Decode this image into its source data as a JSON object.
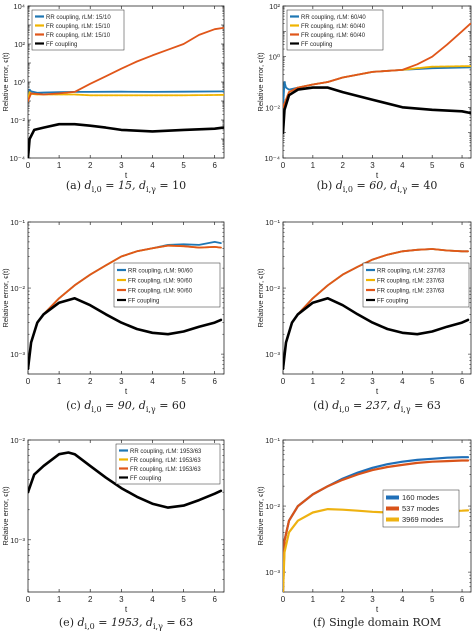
{
  "colors": {
    "RR": "#1f77b4",
    "FR": "#f0b400",
    "FR2": "#e0561a",
    "FF": "#000000",
    "M160": "#1f6fb8",
    "M537": "#d95319",
    "M3969": "#eeb211"
  },
  "chart_data": [
    {
      "type": "line",
      "caption_label": "(a)",
      "caption_rest": "d_{i,0} = 15, d_{i,γ} = 10",
      "xlabel": "t",
      "ylabel": "Relative error, ϵ(t)",
      "yscale": "log",
      "xlim": [
        0,
        6.3
      ],
      "ylim": [
        0.0001,
        10000
      ],
      "xticks": [
        "0",
        "1",
        "2",
        "3",
        "4",
        "5",
        "6"
      ],
      "yticks": [
        {
          "v": 10000,
          "t": "10⁴"
        },
        {
          "v": 100,
          "t": "10²"
        },
        {
          "v": 1,
          "t": "10⁰"
        },
        {
          "v": 0.01,
          "t": "10⁻²"
        },
        {
          "v": 0.0001,
          "t": "10⁻⁴"
        }
      ],
      "legend_position": "top-left",
      "series": [
        {
          "name": "RR coupling, rLM: 15/10",
          "key": "RR",
          "x": [
            0,
            0.05,
            0.1,
            0.3,
            0.5,
            1,
            1.5,
            2,
            3,
            4,
            5,
            6.28
          ],
          "y": [
            0.1,
            0.4,
            0.32,
            0.27,
            0.28,
            0.29,
            0.3,
            0.3,
            0.31,
            0.3,
            0.31,
            0.32
          ]
        },
        {
          "name": "FR coupling, rLM: 15/10",
          "key": "FR",
          "x": [
            0,
            0.05,
            0.1,
            0.3,
            0.5,
            1,
            1.5,
            2,
            3,
            4,
            5,
            6.28
          ],
          "y": [
            0.1,
            0.3,
            0.24,
            0.22,
            0.22,
            0.22,
            0.22,
            0.2,
            0.2,
            0.2,
            0.2,
            0.21
          ]
        },
        {
          "name": "FR coupling, rLM: 15/10",
          "key": "FR2",
          "x": [
            0,
            0.1,
            0.5,
            1,
            1.5,
            2,
            2.5,
            3,
            3.5,
            4,
            4.5,
            5,
            5.5,
            6,
            6.28
          ],
          "y": [
            0.1,
            0.25,
            0.22,
            0.25,
            0.3,
            0.8,
            2,
            5,
            12,
            25,
            50,
            100,
            300,
            600,
            700
          ]
        },
        {
          "name": "FF coupling",
          "key": "FF",
          "x": [
            0,
            0.05,
            0.2,
            0.5,
            1,
            1.5,
            2,
            2.5,
            3,
            4,
            5,
            6,
            6.28
          ],
          "y": [
            0.0001,
            0.001,
            0.003,
            0.004,
            0.006,
            0.006,
            0.005,
            0.004,
            0.003,
            0.0025,
            0.003,
            0.0035,
            0.004
          ]
        }
      ]
    },
    {
      "type": "line",
      "caption_label": "(b)",
      "caption_rest": "d_{i,0} = 60, d_{i,γ} = 40",
      "xlabel": "t",
      "ylabel": "Relative error, ϵ(t)",
      "yscale": "log",
      "xlim": [
        0,
        6.3
      ],
      "ylim": [
        0.0001,
        100
      ],
      "xticks": [
        "0",
        "1",
        "2",
        "3",
        "4",
        "5",
        "6"
      ],
      "yticks": [
        {
          "v": 100,
          "t": "10²"
        },
        {
          "v": 1,
          "t": "10⁰"
        },
        {
          "v": 0.01,
          "t": "10⁻²"
        },
        {
          "v": 0.0001,
          "t": "10⁻⁴"
        }
      ],
      "legend_position": "top-left",
      "series": [
        {
          "name": "RR coupling, rLM: 60/40",
          "key": "RR",
          "x": [
            0,
            0.05,
            0.1,
            0.2,
            0.5,
            1,
            1.5,
            2,
            3,
            4,
            5,
            6.28
          ],
          "y": [
            0.01,
            0.1,
            0.06,
            0.05,
            0.06,
            0.08,
            0.1,
            0.15,
            0.25,
            0.3,
            0.35,
            0.38
          ]
        },
        {
          "name": "FR coupling, rLM: 60/40",
          "key": "FR",
          "x": [
            0,
            0.2,
            0.5,
            1,
            1.5,
            2,
            3,
            4,
            4.5,
            5,
            6,
            6.28
          ],
          "y": [
            0.01,
            0.04,
            0.06,
            0.08,
            0.1,
            0.15,
            0.25,
            0.3,
            0.35,
            0.4,
            0.42,
            0.42
          ]
        },
        {
          "name": "FR coupling, rLM: 60/40",
          "key": "FR2",
          "x": [
            0,
            0.2,
            0.5,
            1,
            1.5,
            2,
            3,
            4,
            4.5,
            5,
            5.5,
            6,
            6.28
          ],
          "y": [
            0.01,
            0.04,
            0.06,
            0.08,
            0.1,
            0.15,
            0.25,
            0.3,
            0.5,
            1,
            3,
            10,
            20
          ]
        },
        {
          "name": "FF coupling",
          "key": "FF",
          "x": [
            0,
            0.05,
            0.2,
            0.5,
            1,
            1.5,
            2,
            3,
            4,
            5,
            6,
            6.28
          ],
          "y": [
            0.001,
            0.008,
            0.03,
            0.05,
            0.06,
            0.06,
            0.04,
            0.02,
            0.01,
            0.008,
            0.007,
            0.006
          ]
        }
      ]
    },
    {
      "type": "line",
      "caption_label": "(c)",
      "caption_rest": "d_{i,0} = 90, d_{i,γ} = 60",
      "xlabel": "t",
      "ylabel": "Relative error, ϵ(t)",
      "yscale": "log",
      "xlim": [
        0,
        6.3
      ],
      "ylim": [
        0.0005,
        0.1
      ],
      "xticks": [
        "0",
        "1",
        "2",
        "3",
        "4",
        "5",
        "6"
      ],
      "yticks": [
        {
          "v": 0.1,
          "t": "10⁻¹"
        },
        {
          "v": 0.01,
          "t": "10⁻²"
        },
        {
          "v": 0.001,
          "t": "10⁻³"
        }
      ],
      "legend_position": "center-right",
      "series": [
        {
          "name": "RR coupling, rLM: 90/60",
          "key": "RR",
          "x": [
            0,
            0.1,
            0.3,
            0.5,
            1,
            1.5,
            2,
            2.5,
            3,
            3.5,
            4,
            4.5,
            5,
            5.5,
            6,
            6.2
          ],
          "y": [
            0.0006,
            0.0015,
            0.003,
            0.004,
            0.007,
            0.011,
            0.016,
            0.022,
            0.03,
            0.036,
            0.04,
            0.045,
            0.046,
            0.045,
            0.05,
            0.048
          ]
        },
        {
          "name": "FR coupling, rLM: 90/60",
          "key": "FR",
          "x": [
            0,
            0.1,
            0.3,
            0.5,
            1,
            1.5,
            2,
            2.5,
            3,
            3.5,
            4,
            4.5,
            5,
            5.5,
            6,
            6.2
          ],
          "y": [
            0.0006,
            0.0015,
            0.003,
            0.004,
            0.007,
            0.011,
            0.016,
            0.022,
            0.03,
            0.036,
            0.04,
            0.044,
            0.043,
            0.041,
            0.042,
            0.041
          ]
        },
        {
          "name": "FR coupling, rLM: 90/60",
          "key": "FR2",
          "x": [
            0,
            0.1,
            0.3,
            0.5,
            1,
            1.5,
            2,
            2.5,
            3,
            3.5,
            4,
            4.5,
            5,
            5.5,
            6,
            6.2
          ],
          "y": [
            0.0006,
            0.0015,
            0.003,
            0.004,
            0.007,
            0.011,
            0.016,
            0.022,
            0.03,
            0.036,
            0.04,
            0.044,
            0.043,
            0.041,
            0.042,
            0.041
          ]
        },
        {
          "name": "FF coupling",
          "key": "FF",
          "x": [
            0,
            0.1,
            0.3,
            0.5,
            1,
            1.5,
            2,
            2.5,
            3,
            3.5,
            4,
            4.5,
            5,
            5.5,
            6,
            6.2
          ],
          "y": [
            0.0006,
            0.0015,
            0.003,
            0.004,
            0.006,
            0.007,
            0.0055,
            0.004,
            0.003,
            0.0024,
            0.0021,
            0.002,
            0.0022,
            0.0026,
            0.003,
            0.0033
          ]
        }
      ]
    },
    {
      "type": "line",
      "caption_label": "(d)",
      "caption_rest": "d_{i,0} = 237, d_{i,γ} = 63",
      "xlabel": "t",
      "ylabel": "Relative error, ϵ(t)",
      "yscale": "log",
      "xlim": [
        0,
        6.3
      ],
      "ylim": [
        0.0005,
        0.1
      ],
      "xticks": [
        "0",
        "1",
        "2",
        "3",
        "4",
        "5",
        "6"
      ],
      "yticks": [
        {
          "v": 0.1,
          "t": "10⁻¹"
        },
        {
          "v": 0.01,
          "t": "10⁻²"
        },
        {
          "v": 0.001,
          "t": "10⁻³"
        }
      ],
      "legend_position": "center-right",
      "series": [
        {
          "name": "RR coupling, rLM: 237/63",
          "key": "RR",
          "x": [
            0,
            0.1,
            0.3,
            0.5,
            1,
            1.5,
            2,
            2.5,
            3,
            3.5,
            4,
            4.5,
            5,
            5.5,
            6,
            6.2
          ],
          "y": [
            0.0006,
            0.0015,
            0.003,
            0.004,
            0.007,
            0.011,
            0.016,
            0.021,
            0.027,
            0.032,
            0.036,
            0.038,
            0.039,
            0.037,
            0.036,
            0.036
          ]
        },
        {
          "name": "FR coupling, rLM: 237/63",
          "key": "FR",
          "x": [
            0,
            0.1,
            0.3,
            0.5,
            1,
            1.5,
            2,
            2.5,
            3,
            3.5,
            4,
            4.5,
            5,
            5.5,
            6,
            6.2
          ],
          "y": [
            0.0006,
            0.0015,
            0.003,
            0.004,
            0.007,
            0.011,
            0.016,
            0.021,
            0.027,
            0.032,
            0.036,
            0.038,
            0.039,
            0.037,
            0.036,
            0.036
          ]
        },
        {
          "name": "FR coupling, rLM: 237/63",
          "key": "FR2",
          "x": [
            0,
            0.1,
            0.3,
            0.5,
            1,
            1.5,
            2,
            2.5,
            3,
            3.5,
            4,
            4.5,
            5,
            5.5,
            6,
            6.2
          ],
          "y": [
            0.0006,
            0.0015,
            0.003,
            0.004,
            0.007,
            0.011,
            0.016,
            0.021,
            0.027,
            0.032,
            0.036,
            0.038,
            0.039,
            0.037,
            0.036,
            0.036
          ]
        },
        {
          "name": "FF coupling",
          "key": "FF",
          "x": [
            0,
            0.1,
            0.3,
            0.5,
            1,
            1.5,
            2,
            2.5,
            3,
            3.5,
            4,
            4.5,
            5,
            5.5,
            6,
            6.2
          ],
          "y": [
            0.0006,
            0.0015,
            0.003,
            0.004,
            0.006,
            0.007,
            0.0055,
            0.004,
            0.003,
            0.0024,
            0.0021,
            0.002,
            0.0022,
            0.0026,
            0.003,
            0.0033
          ]
        }
      ]
    },
    {
      "type": "line",
      "caption_label": "(e)",
      "caption_rest": "d_{i,0} = 1953, d_{i,γ} = 63",
      "xlabel": "t",
      "ylabel": "Relative error, ϵ(t)",
      "yscale": "log",
      "xlim": [
        0,
        6.3
      ],
      "ylim": [
        0.0003,
        0.01
      ],
      "xticks": [
        "0",
        "1",
        "2",
        "3",
        "4",
        "5",
        "6"
      ],
      "yticks": [
        {
          "v": 0.01,
          "t": "10⁻²"
        },
        {
          "v": 0.001,
          "t": "10⁻³"
        }
      ],
      "legend_position": "top-right",
      "series": [
        {
          "name": "RR coupling, rLM: 1953/63",
          "key": "RR",
          "x": [
            0,
            0.2,
            0.5,
            1,
            1.3,
            1.5,
            2,
            2.5,
            3,
            3.5,
            4,
            4.5,
            5,
            5.5,
            6,
            6.2
          ],
          "y": [
            0.003,
            0.0045,
            0.0055,
            0.0072,
            0.0075,
            0.0072,
            0.0055,
            0.0042,
            0.0033,
            0.0027,
            0.0023,
            0.0021,
            0.0022,
            0.0025,
            0.0029,
            0.0031
          ]
        },
        {
          "name": "FR coupling, rLM: 1953/63",
          "key": "FR",
          "x": [
            0,
            0.2,
            0.5,
            1,
            1.3,
            1.5,
            2,
            2.5,
            3,
            3.5,
            4,
            4.5,
            5,
            5.5,
            6,
            6.2
          ],
          "y": [
            0.003,
            0.0045,
            0.0055,
            0.0072,
            0.0075,
            0.0072,
            0.0055,
            0.0042,
            0.0033,
            0.0027,
            0.0023,
            0.0021,
            0.0022,
            0.0025,
            0.0029,
            0.0031
          ]
        },
        {
          "name": "FR coupling, rLM: 1953/63",
          "key": "FR2",
          "x": [
            0,
            0.2,
            0.5,
            1,
            1.3,
            1.5,
            2,
            2.5,
            3,
            3.5,
            4,
            4.5,
            5,
            5.5,
            6,
            6.2
          ],
          "y": [
            0.003,
            0.0045,
            0.0055,
            0.0072,
            0.0075,
            0.0072,
            0.0055,
            0.0042,
            0.0033,
            0.0027,
            0.0023,
            0.0021,
            0.0022,
            0.0025,
            0.0029,
            0.0031
          ]
        },
        {
          "name": "FF coupling",
          "key": "FF",
          "x": [
            0,
            0.2,
            0.5,
            1,
            1.3,
            1.5,
            2,
            2.5,
            3,
            3.5,
            4,
            4.5,
            5,
            5.5,
            6,
            6.2
          ],
          "y": [
            0.003,
            0.0045,
            0.0055,
            0.0072,
            0.0075,
            0.0072,
            0.0055,
            0.0042,
            0.0033,
            0.0027,
            0.0023,
            0.0021,
            0.0022,
            0.0025,
            0.0029,
            0.0031
          ]
        }
      ]
    },
    {
      "type": "line",
      "caption_label": "(f)",
      "caption_rest": "Single domain ROM",
      "xlabel": "t",
      "ylabel": "Relative error, ϵ(t)",
      "yscale": "log",
      "xlim": [
        0,
        6.3
      ],
      "ylim": [
        0.0005,
        0.1
      ],
      "xticks": [
        "0",
        "1",
        "2",
        "3",
        "4",
        "5",
        "6"
      ],
      "yticks": [
        {
          "v": 0.1,
          "t": "10⁻¹"
        },
        {
          "v": 0.01,
          "t": "10⁻²"
        },
        {
          "v": 0.001,
          "t": "10⁻³"
        }
      ],
      "legend_position": "center-right",
      "series": [
        {
          "name": "160 modes",
          "key": "M160",
          "x": [
            0,
            0.05,
            0.2,
            0.5,
            1,
            1.5,
            2,
            2.5,
            3,
            3.5,
            4,
            4.5,
            5,
            5.5,
            6,
            6.2
          ],
          "y": [
            0.0005,
            0.003,
            0.006,
            0.01,
            0.015,
            0.02,
            0.026,
            0.032,
            0.038,
            0.043,
            0.047,
            0.05,
            0.052,
            0.054,
            0.055,
            0.055
          ]
        },
        {
          "name": "537 modes",
          "key": "M537",
          "x": [
            0,
            0.05,
            0.2,
            0.5,
            1,
            1.5,
            2,
            2.5,
            3,
            3.5,
            4,
            4.5,
            5,
            5.5,
            6,
            6.2
          ],
          "y": [
            0.0005,
            0.003,
            0.006,
            0.01,
            0.015,
            0.02,
            0.025,
            0.03,
            0.035,
            0.039,
            0.042,
            0.045,
            0.047,
            0.048,
            0.049,
            0.049
          ]
        },
        {
          "name": "3969 modes",
          "key": "M3969",
          "x": [
            0,
            0.05,
            0.2,
            0.5,
            1,
            1.5,
            2,
            2.5,
            3,
            3.5,
            4,
            4.5,
            5,
            5.5,
            6,
            6.2
          ],
          "y": [
            0.0005,
            0.002,
            0.004,
            0.006,
            0.008,
            0.009,
            0.0088,
            0.0085,
            0.0082,
            0.008,
            0.0081,
            0.0082,
            0.0083,
            0.0084,
            0.0085,
            0.0086
          ]
        }
      ]
    }
  ]
}
